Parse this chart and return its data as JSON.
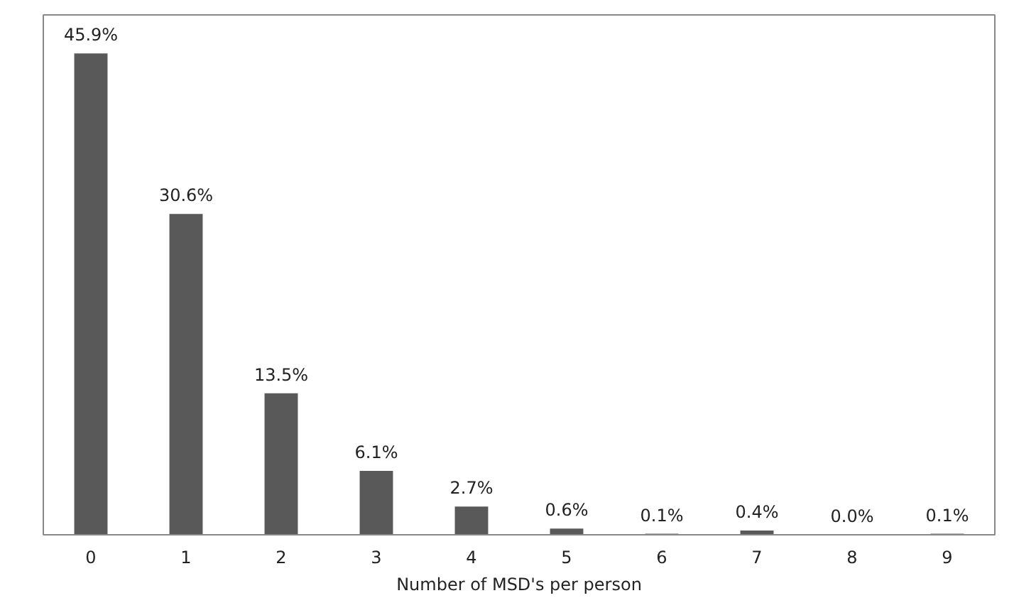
{
  "chart_data": {
    "type": "bar",
    "xlabel": "Number of MSD's per person",
    "categories": [
      "0",
      "1",
      "2",
      "3",
      "4",
      "5",
      "6",
      "7",
      "8",
      "9"
    ],
    "values": [
      45.9,
      30.6,
      13.5,
      6.1,
      2.7,
      0.6,
      0.1,
      0.4,
      0.0,
      0.1
    ],
    "value_labels": [
      "45.9%",
      "30.6%",
      "13.5%",
      "6.1%",
      "2.7%",
      "0.6%",
      "0.1%",
      "0.4%",
      "0.0%",
      "0.1%"
    ],
    "color": "#595959",
    "grid": false
  }
}
